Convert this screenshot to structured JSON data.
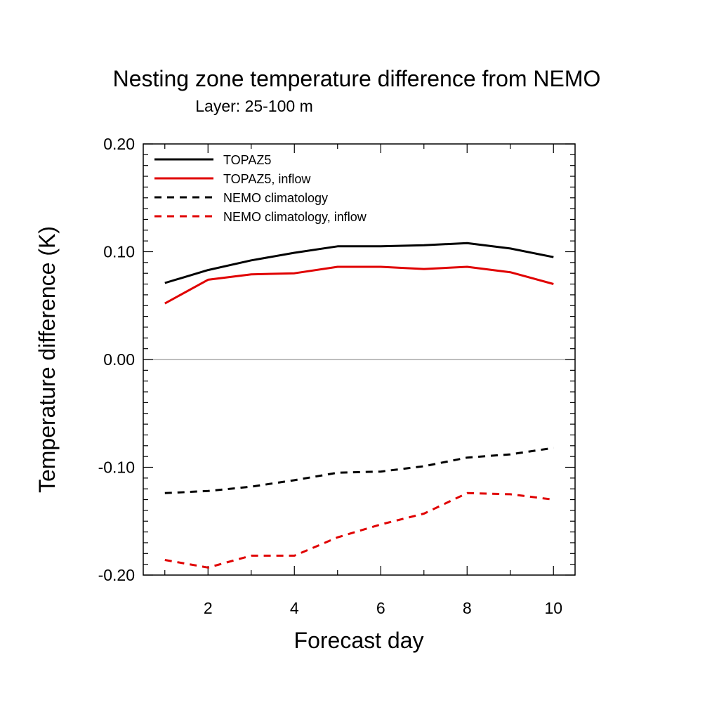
{
  "chart_data": {
    "type": "line",
    "title": "Nesting zone temperature difference from NEMO",
    "subtitle": "Layer: 25-100 m",
    "xlabel": "Forecast day",
    "ylabel": "Temperature difference (K)",
    "xlim": [
      0.5,
      10.5
    ],
    "ylim": [
      -0.2,
      0.2
    ],
    "xticks": [
      2,
      4,
      6,
      8,
      10
    ],
    "xtick_labels": [
      "2",
      "4",
      "6",
      "8",
      "10"
    ],
    "yticks": [
      -0.2,
      -0.1,
      0.0,
      0.1,
      0.2
    ],
    "ytick_labels": [
      "-0.20",
      "-0.10",
      "0.00",
      "0.10",
      "0.20"
    ],
    "zero_line": true,
    "grid": false,
    "legend_position": "top-left",
    "x": [
      1,
      2,
      3,
      4,
      5,
      6,
      7,
      8,
      9,
      10
    ],
    "series": [
      {
        "name": "TOPAZ5",
        "color": "#000000",
        "dash": "solid",
        "values": [
          0.071,
          0.083,
          0.092,
          0.099,
          0.105,
          0.105,
          0.106,
          0.108,
          0.103,
          0.095
        ]
      },
      {
        "name": "TOPAZ5, inflow",
        "color": "#e00000",
        "dash": "solid",
        "values": [
          0.052,
          0.074,
          0.079,
          0.08,
          0.086,
          0.086,
          0.084,
          0.086,
          0.081,
          0.07
        ]
      },
      {
        "name": "NEMO climatology",
        "color": "#000000",
        "dash": "dashed",
        "values": [
          -0.124,
          -0.122,
          -0.118,
          -0.112,
          -0.105,
          -0.104,
          -0.099,
          -0.091,
          -0.088,
          -0.082
        ]
      },
      {
        "name": "NEMO climatology, inflow",
        "color": "#e00000",
        "dash": "dashed",
        "values": [
          -0.186,
          -0.193,
          -0.182,
          -0.182,
          -0.165,
          -0.153,
          -0.143,
          -0.124,
          -0.125,
          -0.13
        ]
      }
    ]
  }
}
